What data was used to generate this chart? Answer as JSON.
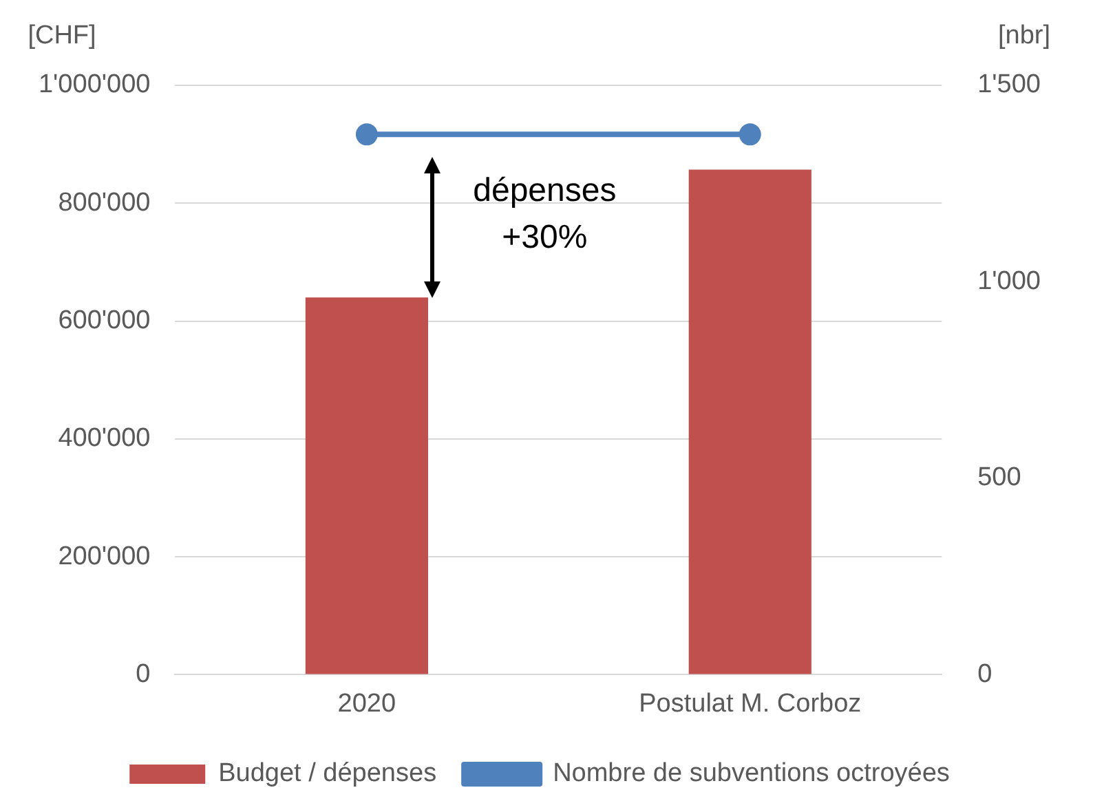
{
  "chart_data": {
    "type": "bar",
    "categories": [
      "2020",
      "Postulat M. Corboz"
    ],
    "series": [
      {
        "name": "Budget / dépenses",
        "color": "#c0504d",
        "values": [
          640000,
          857000
        ]
      },
      {
        "name": "Nombre de subventions octroyées",
        "type": "line",
        "axis": "y2",
        "color": "#4f81bd",
        "values": [
          1375,
          1375
        ]
      }
    ],
    "ylabel": "[CHF]",
    "y2label": "[nbr]",
    "ylim": [
      0,
      1000000
    ],
    "yticks": [
      0,
      {
        "value": 200000,
        "label": "200'000"
      },
      {
        "value": 400000,
        "label": "400'000"
      },
      {
        "value": 600000,
        "label": "600'000"
      },
      {
        "value": 800000,
        "label": "800'000"
      },
      {
        "value": 1000000,
        "label": "1'000'000"
      }
    ],
    "y2lim": [
      0,
      1500
    ],
    "y2ticks": [
      0,
      500,
      {
        "value": 1000,
        "label": "1'000"
      },
      {
        "value": 1500,
        "label": "1'500"
      }
    ],
    "annotations": [
      "dépenses\n+30%"
    ],
    "grid": "y",
    "legend": "bottom",
    "marker": "circle",
    "line_style": "solid"
  }
}
